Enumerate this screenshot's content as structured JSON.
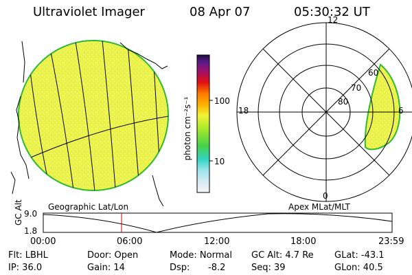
{
  "header": {
    "title": "Ultraviolet Imager",
    "date": "08 Apr 07",
    "time": "05:30:32 UT"
  },
  "colorbar": {
    "unit_label": "photon cm⁻²s⁻¹",
    "ticks": [
      "100",
      "10"
    ]
  },
  "polar": {
    "mlt_labels": [
      "12",
      "18",
      "6",
      "0"
    ],
    "lat_labels": [
      "60",
      "70",
      "80"
    ]
  },
  "panel_labels": {
    "left": "Geographic Lat/Lon",
    "right": "Apex MLat/MLT"
  },
  "gc_plot": {
    "axis_label": "GC Alt",
    "y_ticks": [
      "9.0",
      "1.8"
    ],
    "x_ticks": [
      "00:00",
      "06:00",
      "12:00",
      "18:00",
      "23:59"
    ],
    "current_time_marker": "05:30"
  },
  "info": {
    "col1": [
      "Flt: LBHL",
      "IP: 36.0"
    ],
    "col2": [
      "Door: Open",
      "Gain: 14"
    ],
    "col3a": [
      "Mode: Normal",
      "Dsp:"
    ],
    "dsp_value": "-8.2",
    "col4": [
      "GC Alt: 4.7 Re",
      "Seq: 39"
    ],
    "col5": [
      "GLat: -43.1",
      "GLon: 40.5"
    ]
  },
  "colors": {
    "emission_fill": "#e8f43c",
    "emission_light": "#f5fa9a",
    "marker": "#cc0000"
  }
}
